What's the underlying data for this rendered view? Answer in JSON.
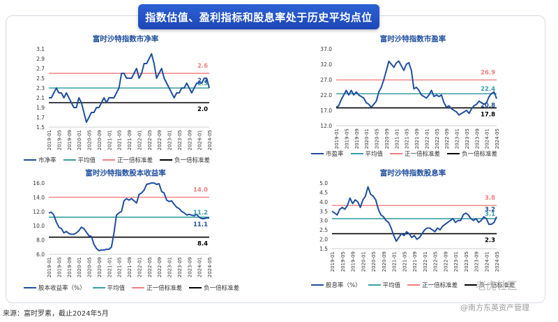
{
  "banner": {
    "title": "指数估值、盈利指标和股息率处于历史平均点位"
  },
  "source": "来源：富时罗素，截止2024年5月",
  "watermarks": {
    "wm1": "老虎社区",
    "wm2": "@南方东英资产管理"
  },
  "colors": {
    "series": "#1f4e9e",
    "mean": "#3a9ea5",
    "plus": "#f08080",
    "minus": "#000000"
  },
  "months": [
    "2019-01",
    "2019-05",
    "2019-09",
    "2020-01",
    "2020-05",
    "2020-09",
    "2021-01",
    "2021-05",
    "2021-09",
    "2022-01",
    "2022-05",
    "2022-09",
    "2023-01",
    "2023-05",
    "2023-09",
    "2024-01",
    "2024-05"
  ],
  "chart_data": [
    {
      "type": "line",
      "title": "富时沙特指数市净率",
      "ylim": [
        1.5,
        3.1
      ],
      "yticks": [
        "1.5",
        "1.7",
        "1.9",
        "2.1",
        "2.3",
        "2.5",
        "2.7",
        "2.9",
        "3.1"
      ],
      "tick_values": [
        1.5,
        1.7,
        1.9,
        2.1,
        2.3,
        2.5,
        2.7,
        2.9,
        3.1
      ],
      "series_name": "市净率",
      "values": [
        2.1,
        2.1,
        2.2,
        2.3,
        2.2,
        2.2,
        2.1,
        2.2,
        2.1,
        2.0,
        1.9,
        1.9,
        2.1,
        2.0,
        1.8,
        1.6,
        1.7,
        1.8,
        1.8,
        1.9,
        1.9,
        2.0,
        2.1,
        2.0,
        2.1,
        2.1,
        2.1,
        2.2,
        2.3,
        2.6,
        2.6,
        2.5,
        2.5,
        2.5,
        2.6,
        2.7,
        2.5,
        2.6,
        2.8,
        2.8,
        2.9,
        3.0,
        2.8,
        2.5,
        2.6,
        2.7,
        2.5,
        2.4,
        2.3,
        2.2,
        2.1,
        2.2,
        2.2,
        2.3,
        2.3,
        2.4,
        2.3,
        2.2,
        2.3,
        2.4,
        2.4,
        2.4,
        2.5,
        2.5,
        2.3
      ],
      "lines": {
        "mean": 2.3,
        "plus": 2.6,
        "minus": 2.0
      },
      "labels": {
        "plus": "2.6",
        "mean": "2.3",
        "latest": "2.3",
        "minus": "2.0"
      },
      "legend": [
        "市净率",
        "平均值",
        "正一倍标准差",
        "负一倍标准差"
      ]
    },
    {
      "type": "line",
      "title": "富时沙特指数市盈率",
      "ylim": [
        12.0,
        37.0
      ],
      "yticks": [
        "12.0",
        "17.0",
        "22.0",
        "27.0",
        "32.0",
        "37.0"
      ],
      "tick_values": [
        12,
        17,
        22,
        27,
        32,
        37
      ],
      "series_name": "市盈率",
      "values": [
        18.0,
        18.5,
        20.5,
        22.0,
        23.5,
        22.0,
        23.5,
        22.0,
        23.0,
        22.0,
        21.5,
        21.0,
        19.5,
        19.0,
        18.0,
        19.0,
        20.0,
        23.0,
        24.5,
        27.0,
        30.0,
        33.0,
        32.0,
        31.0,
        32.5,
        33.0,
        31.5,
        30.0,
        32.0,
        32.5,
        30.0,
        24.0,
        24.5,
        23.5,
        22.0,
        21.5,
        21.0,
        22.0,
        23.5,
        21.5,
        22.0,
        21.5,
        22.0,
        19.5,
        18.0,
        18.5,
        17.5,
        17.0,
        16.5,
        15.5,
        16.0,
        16.5,
        17.0,
        16.0,
        17.5,
        18.5,
        19.0,
        20.0,
        19.5,
        19.0,
        19.5,
        21.5,
        22.5,
        23.0,
        20.8
      ],
      "lines": {
        "mean": 22.4,
        "plus": 26.9,
        "minus": 17.8
      },
      "labels": {
        "plus": "26.9",
        "mean": "22.4",
        "latest": "20.8",
        "minus": "17.8"
      },
      "legend": [
        "市盈率",
        "平均值",
        "正一倍标准差",
        "负一倍标准差"
      ]
    },
    {
      "type": "line",
      "title": "富时沙特指数股本收益率",
      "ylim": [
        6.0,
        16.0
      ],
      "yticks": [
        "6.0",
        "8.0",
        "10.0",
        "12.0",
        "14.0",
        "16.0"
      ],
      "tick_values": [
        6,
        8,
        10,
        12,
        14,
        16
      ],
      "series_name": "股本收益率（%）",
      "values": [
        11.8,
        11.9,
        11.5,
        10.5,
        9.8,
        9.6,
        9.0,
        9.2,
        8.9,
        8.8,
        8.8,
        9.0,
        9.3,
        9.8,
        9.6,
        9.1,
        8.6,
        8.5,
        7.4,
        6.8,
        6.5,
        6.6,
        6.6,
        6.7,
        6.7,
        7.0,
        9.0,
        11.5,
        11.8,
        12.0,
        13.5,
        13.8,
        13.6,
        13.8,
        13.5,
        13.2,
        14.4,
        14.6,
        15.0,
        15.8,
        15.9,
        16.0,
        16.0,
        15.8,
        15.9,
        14.8,
        14.6,
        13.6,
        13.4,
        13.5,
        13.0,
        12.6,
        12.4,
        12.0,
        11.8,
        11.5,
        11.6,
        11.5,
        11.4,
        11.6,
        11.2,
        11.0,
        11.0,
        11.1,
        11.1
      ],
      "lines": {
        "mean": 11.2,
        "plus": 14.0,
        "minus": 8.4
      },
      "labels": {
        "plus": "14.0",
        "mean": "11.2",
        "latest": "11.1",
        "minus": "8.4"
      },
      "legend": [
        "股本收益率（%）",
        "平均值",
        "正一倍标准差",
        "负一倍标准差"
      ]
    },
    {
      "type": "line",
      "title": "富时沙特指数股息率",
      "ylim": [
        1.5,
        5.0
      ],
      "yticks": [
        "1.5",
        "2.0",
        "2.5",
        "3.0",
        "3.5",
        "4.0",
        "4.5",
        "5.0"
      ],
      "tick_values": [
        1.5,
        2.0,
        2.5,
        3.0,
        3.5,
        4.0,
        4.5,
        5.0
      ],
      "series_name": "股息率（%）",
      "values": [
        3.5,
        3.4,
        3.3,
        3.6,
        3.7,
        3.6,
        3.8,
        4.2,
        3.9,
        4.1,
        4.0,
        3.7,
        4.1,
        4.3,
        4.8,
        4.4,
        4.3,
        4.1,
        3.6,
        3.3,
        3.2,
        3.0,
        2.9,
        2.6,
        2.2,
        1.9,
        2.1,
        2.3,
        2.2,
        2.4,
        2.3,
        2.1,
        2.2,
        2.0,
        2.1,
        2.3,
        2.5,
        2.6,
        2.6,
        2.5,
        2.4,
        2.6,
        2.5,
        2.7,
        2.8,
        2.9,
        3.0,
        3.1,
        2.9,
        3.0,
        3.0,
        3.3,
        3.4,
        3.3,
        3.1,
        3.0,
        3.1,
        2.9,
        3.0,
        3.2,
        3.1,
        2.8,
        2.8,
        2.9,
        3.2
      ],
      "lines": {
        "mean": 3.1,
        "plus": 3.8,
        "minus": 2.3
      },
      "labels": {
        "plus": "3.8",
        "mean": "3.1",
        "latest": "3.2",
        "minus": "2.3"
      },
      "legend": [
        "股息率（%）",
        "平均值",
        "正一倍标准差",
        "负一倍标准差"
      ]
    }
  ]
}
